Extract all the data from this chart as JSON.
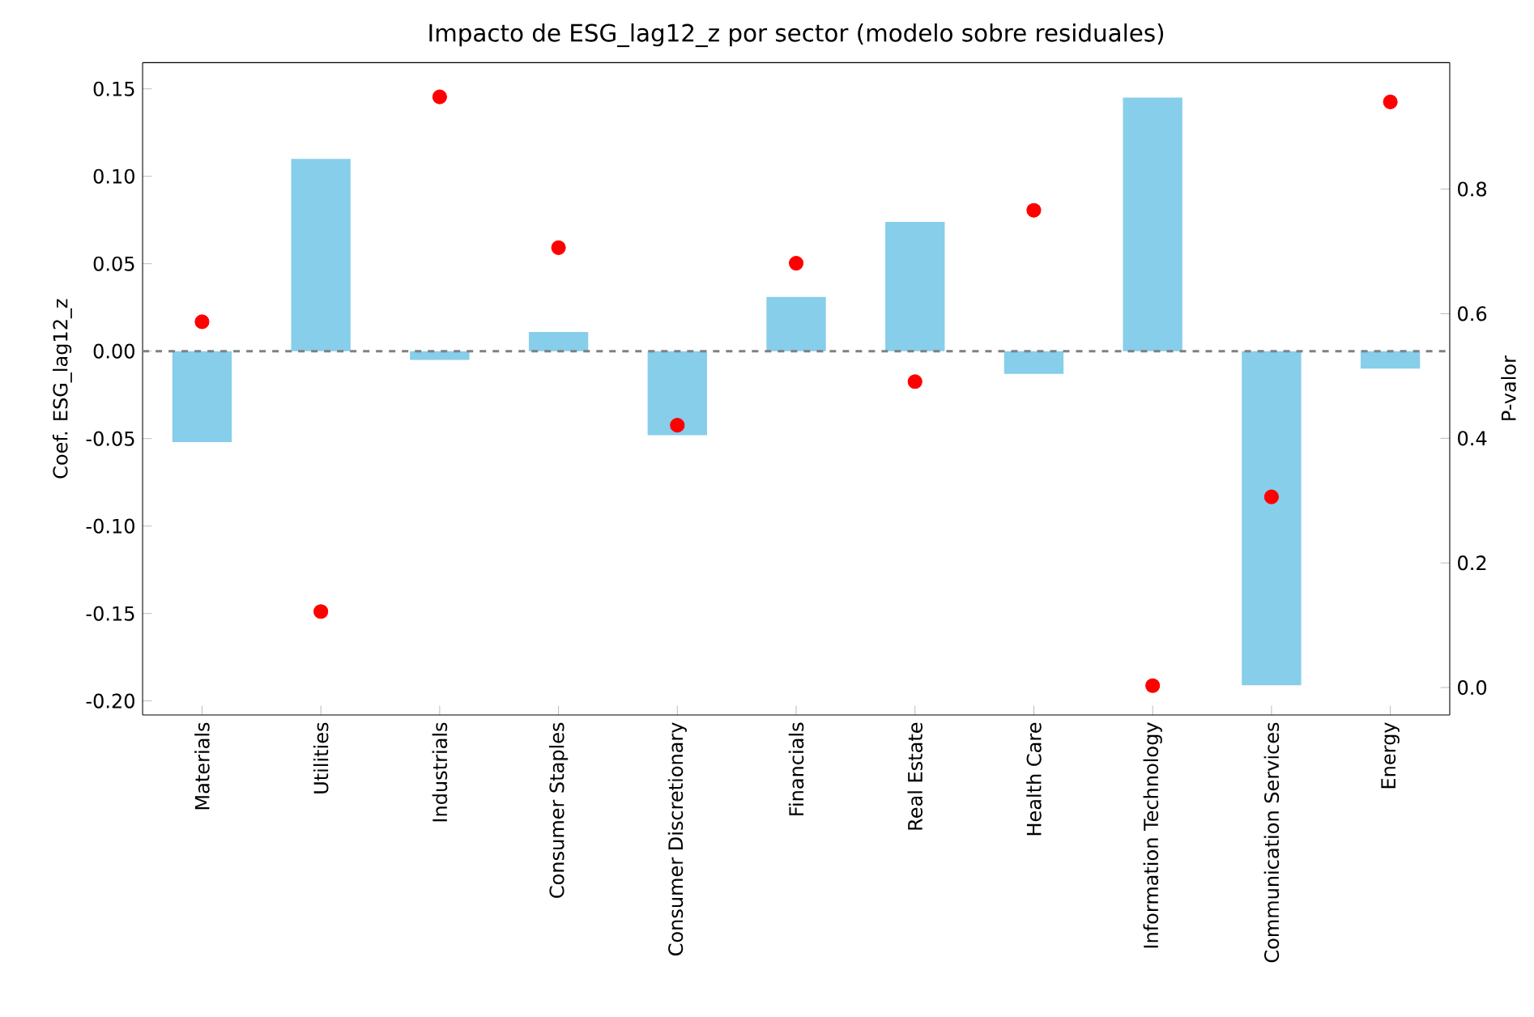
{
  "chart_data": {
    "type": "bar",
    "title": "Impacto de ESG_lag12_z por sector (modelo sobre residuales)",
    "ylabel": "Coef. ESG_lag12_z",
    "y2label": "P-valor",
    "categories": [
      "Materials",
      "Utilities",
      "Industrials",
      "Consumer Staples",
      "Consumer Discretionary",
      "Financials",
      "Real Estate",
      "Health Care",
      "Information Technology",
      "Communication Services",
      "Energy"
    ],
    "series": [
      {
        "color": "#87ceeb",
        "values": [
          -0.052,
          0.11,
          -0.005,
          0.011,
          -0.048,
          0.031,
          0.074,
          -0.013,
          0.145,
          -0.191,
          -0.01
        ]
      },
      {
        "type": "scatter",
        "axis": "y2",
        "color": "#ff0000",
        "x": [
          "Materials",
          "Utilities",
          "Industrials",
          "Consumer Staples",
          "Consumer Discretionary",
          "Financials",
          "Real Estate",
          "Health Care",
          "Information Technology",
          "Communication Services",
          "Energy"
        ],
        "values": [
          0.587,
          0.122,
          0.948,
          0.706,
          0.421,
          0.681,
          0.491,
          0.766,
          0.003,
          0.306,
          0.94
        ]
      }
    ],
    "ylim": [
      -0.208,
      0.165
    ],
    "yticks": [
      {
        "value": -0.2,
        "label": "-0.20"
      },
      {
        "value": -0.15,
        "label": "-0.15"
      },
      {
        "value": -0.1,
        "label": "-0.10"
      },
      {
        "value": -0.05,
        "label": "-0.05"
      },
      {
        "value": 0,
        "label": "0.00"
      },
      {
        "value": 0.05,
        "label": "0.05"
      },
      {
        "value": 0.1,
        "label": "0.10"
      },
      {
        "value": 0.15,
        "label": "0.15"
      }
    ],
    "y2lim": [
      -0.044,
      1.003
    ],
    "y2ticks": [
      {
        "value": 0,
        "label": "0.0"
      },
      {
        "value": 0.2,
        "label": "0.2"
      },
      {
        "value": 0.4,
        "label": "0.4"
      },
      {
        "value": 0.6,
        "label": "0.6"
      },
      {
        "value": 0.8,
        "label": "0.8"
      }
    ],
    "ref_lines": [
      {
        "axis": "y",
        "value": 0,
        "color": "#808080",
        "line_style": "dashed"
      }
    ],
    "marker": "circle",
    "grid": false
  }
}
